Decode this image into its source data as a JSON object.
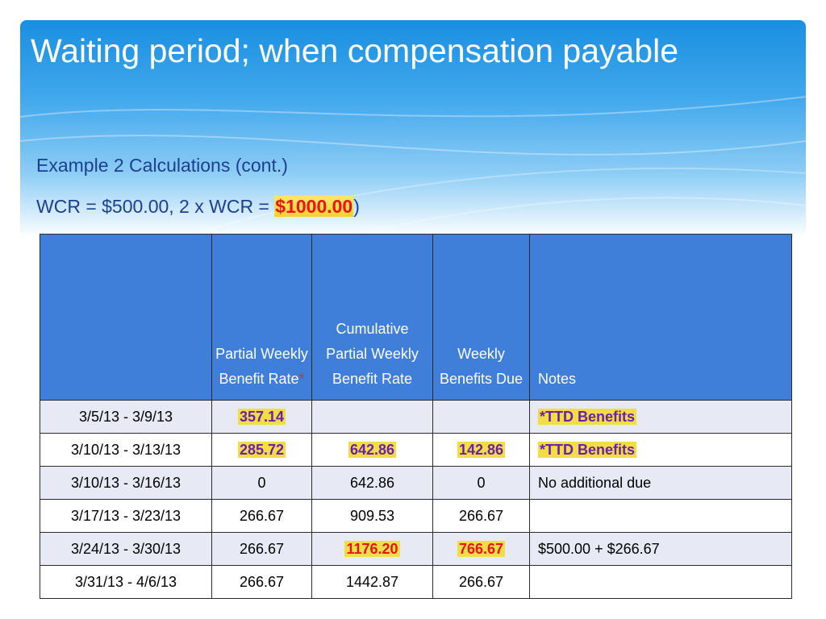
{
  "slide": {
    "title": "Waiting period; when compensation payable",
    "subtitle_line1": "Example 2 Calculations (cont.)",
    "subtitle_line2_prefix": "WCR = $500.00, 2 x WCR = ",
    "subtitle_line2_highlight": "$1000.00",
    "subtitle_line2_suffix": ")"
  },
  "colors": {
    "header_gradient_top": "#1a8fe0",
    "table_header_bg": "#3f7fd9",
    "row_band": "#e7eaf5",
    "highlight_yellow": "#f3dd46",
    "accent_red": "#e3161b",
    "accent_purple": "#6a1fae",
    "subtitle_blue": "#1d3f8f"
  },
  "table": {
    "headers": [
      "",
      "Partial Weekly Benefit Rate",
      "Cumulative Partial Weekly Benefit Rate",
      "Weekly Benefits Due",
      "Notes"
    ],
    "header_asterisk": "*",
    "rows": [
      {
        "period": "3/5/13 - 3/9/13",
        "partial": "357.14",
        "cumulative": "",
        "due": "",
        "notes": "*TTD Benefits"
      },
      {
        "period": "3/10/13 - 3/13/13",
        "partial": "285.72",
        "cumulative": "642.86",
        "due": "142.86",
        "notes": "*TTD Benefits"
      },
      {
        "period": "3/10/13 - 3/16/13",
        "partial": "0",
        "cumulative": "642.86",
        "due": "0",
        "notes": "No additional due"
      },
      {
        "period": "3/17/13 - 3/23/13",
        "partial": "266.67",
        "cumulative": "909.53",
        "due": "266.67",
        "notes": ""
      },
      {
        "period": "3/24/13 - 3/30/13",
        "partial": "266.67",
        "cumulative": "1176.20",
        "due": "766.67",
        "notes": "$500.00 + $266.67"
      },
      {
        "period": "3/31/13 - 4/6/13",
        "partial": "266.67",
        "cumulative": "1442.87",
        "due": "266.67",
        "notes": ""
      }
    ]
  }
}
